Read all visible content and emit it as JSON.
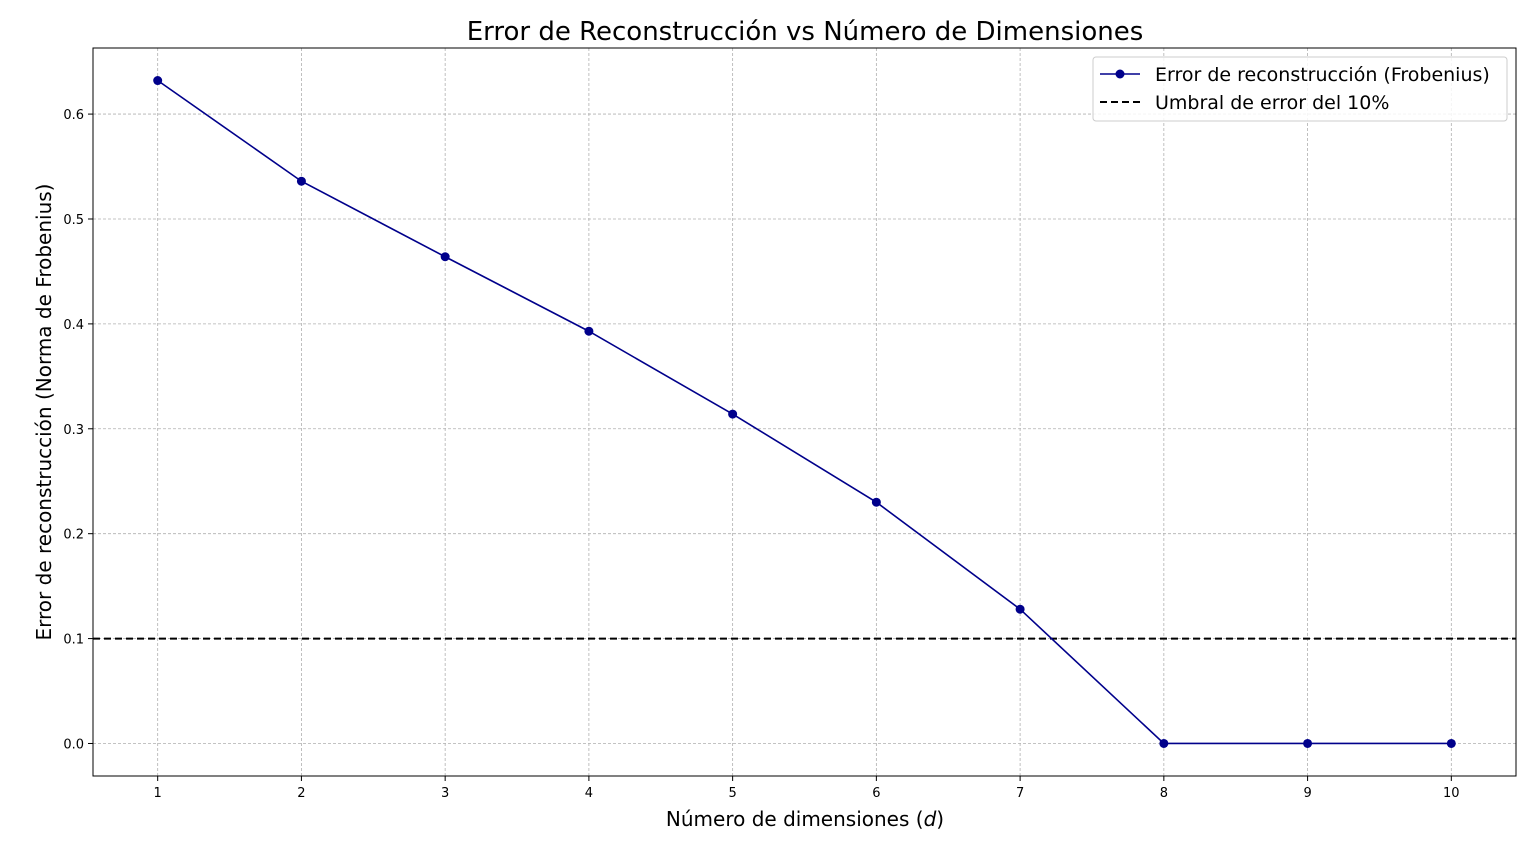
{
  "chart_data": {
    "type": "line",
    "title": "Error de Reconstrucción vs Número de Dimensiones",
    "xlabel_prefix": "Número de dimensiones (",
    "xlabel_var": "d",
    "xlabel_suffix": ")",
    "ylabel": "Error de reconstrucción (Norma de Frobenius)",
    "x": [
      1,
      2,
      3,
      4,
      5,
      6,
      7,
      8,
      9,
      10
    ],
    "xticks": [
      "1",
      "2",
      "3",
      "4",
      "5",
      "6",
      "7",
      "8",
      "9",
      "10"
    ],
    "yticks": [
      "0.0",
      "0.1",
      "0.2",
      "0.3",
      "0.4",
      "0.5",
      "0.6"
    ],
    "ytick_values": [
      0,
      0.1,
      0.2,
      0.3,
      0.4,
      0.5,
      0.6
    ],
    "xlim": [
      0.55,
      10.45
    ],
    "ylim": [
      -0.031,
      0.663
    ],
    "grid": true,
    "legend_position": "top-right",
    "series": [
      {
        "name": "Error de reconstrucción (Frobenius)",
        "color": "#00008b",
        "marker": "circle",
        "values": [
          0.632,
          0.536,
          0.464,
          0.393,
          0.314,
          0.23,
          0.128,
          0.0,
          0.0,
          0.0
        ]
      }
    ],
    "threshold": {
      "name": "Umbral de error del 10%",
      "value": 0.1,
      "color": "#000000",
      "style": "dashed"
    }
  }
}
